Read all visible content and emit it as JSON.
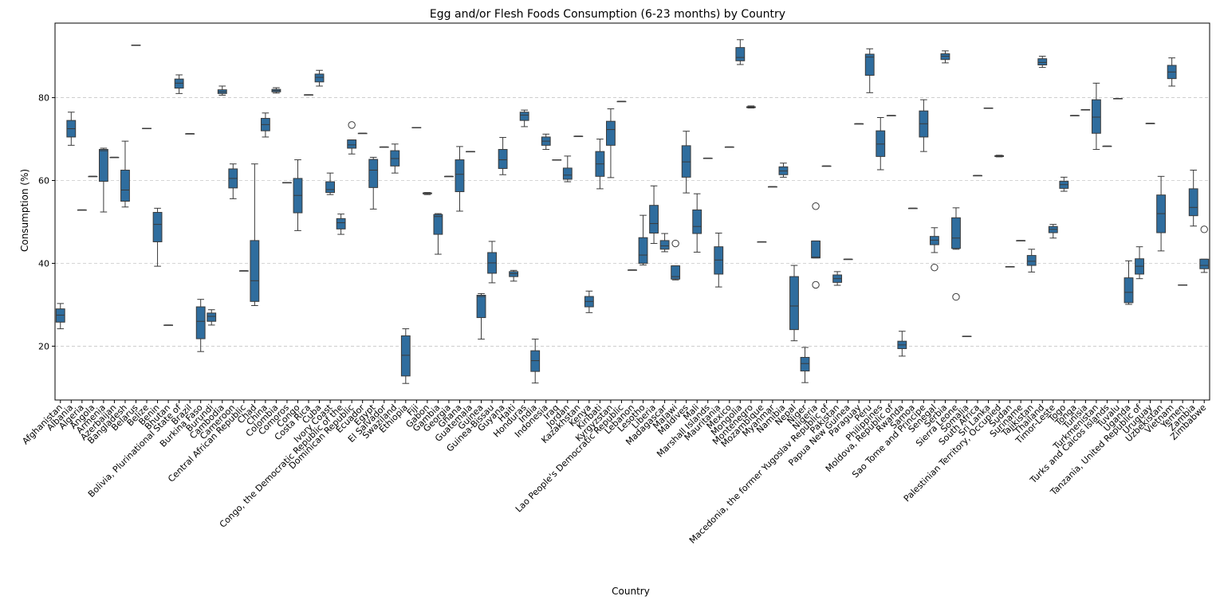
{
  "chart_data": {
    "type": "box",
    "title": "Egg and/or Flesh Foods Consumption (6-23 months) by Country",
    "xlabel": "Country",
    "ylabel": "Consumption (%)",
    "ylim": [
      7,
      98
    ],
    "yticks": [
      20,
      40,
      60,
      80
    ],
    "grid": "y-dashed",
    "box_color": "#2f6d9e",
    "categories": [
      "Afghanistan",
      "Albania",
      "Algeria",
      "Angola",
      "Armenia",
      "Azerbaijan",
      "Bangladesh",
      "Belarus",
      "Belize",
      "Benin",
      "Bhutan",
      "Bolivia, Plurinational State of",
      "Brazil",
      "Burkina Faso",
      "Burundi",
      "Cambodia",
      "Cameroon",
      "Central African Republic",
      "Chad",
      "China",
      "Colombia",
      "Comoros",
      "Congo",
      "Costa Rica",
      "Cuba",
      "Ivory Coast",
      "Congo, the Democratic Republic of the",
      "Dominican Republic",
      "Ecuador",
      "Egypt",
      "El Salvador",
      "Swaziland",
      "Ethiopia",
      "Fiji",
      "Gabon",
      "Gambia",
      "Georgia",
      "Ghana",
      "Guatemala",
      "Guinea",
      "Guinea-Bissau",
      "Guyana",
      "Haiti",
      "Honduras",
      "India",
      "Indonesia",
      "Iraq",
      "Jordan",
      "Kazakhstan",
      "Kenya",
      "Kiribati",
      "Kyrgyzstan",
      "Lao People's Democratic Republic",
      "Lebanon",
      "Lesotho",
      "Liberia",
      "Madagascar",
      "Malawi",
      "Maldives",
      "Mali",
      "Marshall Islands",
      "Mauritania",
      "Mexico",
      "Mongolia",
      "Montenegro",
      "Mozambique",
      "Myanmar",
      "Namibia",
      "Nepal",
      "Niger",
      "Nigeria",
      "Macedonia, the former Yugoslav Republic of",
      "Pakistan",
      "Papua New Guinea",
      "Paraguay",
      "Peru",
      "Philippines",
      "Moldova, Republic of",
      "Rwanda",
      "Samoa",
      "Sao Tome and Principe",
      "Senegal",
      "Serbia",
      "Sierra Leone",
      "Somalia",
      "South Africa",
      "Sri Lanka",
      "Palestinian Territory, Occupied",
      "Sudan",
      "Suriname",
      "Tajikistan",
      "Thailand",
      "Timor-Leste",
      "Togo",
      "Tonga",
      "Tunisia",
      "Turkmenistan",
      "Turks and Caicos Islands",
      "Tuvalu",
      "Uganda",
      "Tanzania, United Republic of",
      "Uruguay",
      "Uzbekistan",
      "Vietnam",
      "Yemen",
      "Zambia",
      "Zimbabwe"
    ],
    "boxes": [
      {
        "min": 24.2,
        "q1": 25.8,
        "median": 27.5,
        "q3": 29.0,
        "max": 30.3,
        "outliers": []
      },
      {
        "min": 68.5,
        "q1": 70.5,
        "median": 72.5,
        "q3": 74.5,
        "max": 76.5,
        "outliers": []
      },
      {
        "min": 52.9,
        "q1": 52.9,
        "median": 52.9,
        "q3": 52.9,
        "max": 52.9,
        "outliers": []
      },
      {
        "min": 61.0,
        "q1": 61.0,
        "median": 61.0,
        "q3": 61.0,
        "max": 61.0,
        "outliers": []
      },
      {
        "min": 52.4,
        "q1": 59.8,
        "median": 67.2,
        "q3": 67.5,
        "max": 67.8,
        "outliers": []
      },
      {
        "min": 65.6,
        "q1": 65.6,
        "median": 65.6,
        "q3": 65.6,
        "max": 65.6,
        "outliers": []
      },
      {
        "min": 53.6,
        "q1": 55.0,
        "median": 57.7,
        "q3": 62.5,
        "max": 69.5,
        "outliers": []
      },
      {
        "min": 92.7,
        "q1": 92.7,
        "median": 92.7,
        "q3": 92.7,
        "max": 92.7,
        "outliers": []
      },
      {
        "min": 72.6,
        "q1": 72.6,
        "median": 72.6,
        "q3": 72.6,
        "max": 72.6,
        "outliers": []
      },
      {
        "min": 39.3,
        "q1": 45.2,
        "median": 49.4,
        "q3": 52.3,
        "max": 53.3,
        "outliers": []
      },
      {
        "min": 25.1,
        "q1": 25.1,
        "median": 25.1,
        "q3": 25.1,
        "max": 25.1,
        "outliers": []
      },
      {
        "min": 81.0,
        "q1": 82.3,
        "median": 83.5,
        "q3": 84.5,
        "max": 85.5,
        "outliers": []
      },
      {
        "min": 71.3,
        "q1": 71.3,
        "median": 71.3,
        "q3": 71.3,
        "max": 71.3,
        "outliers": []
      },
      {
        "min": 18.7,
        "q1": 21.8,
        "median": 26.0,
        "q3": 29.5,
        "max": 31.3,
        "outliers": []
      },
      {
        "min": 25.1,
        "q1": 26.0,
        "median": 27.2,
        "q3": 28.0,
        "max": 28.8,
        "outliers": []
      },
      {
        "min": 80.6,
        "q1": 81.0,
        "median": 81.4,
        "q3": 81.9,
        "max": 82.8,
        "outliers": []
      },
      {
        "min": 55.6,
        "q1": 58.2,
        "median": 60.5,
        "q3": 62.8,
        "max": 64.0,
        "outliers": []
      },
      {
        "min": 38.2,
        "q1": 38.2,
        "median": 38.2,
        "q3": 38.2,
        "max": 38.2,
        "outliers": []
      },
      {
        "min": 29.8,
        "q1": 30.8,
        "median": 35.8,
        "q3": 45.5,
        "max": 64.0,
        "outliers": []
      },
      {
        "min": 70.5,
        "q1": 72.0,
        "median": 73.5,
        "q3": 75.0,
        "max": 76.3,
        "outliers": []
      },
      {
        "min": 81.1,
        "q1": 81.4,
        "median": 81.7,
        "q3": 82.0,
        "max": 82.4,
        "outliers": []
      },
      {
        "min": 59.5,
        "q1": 59.5,
        "median": 59.5,
        "q3": 59.5,
        "max": 59.5,
        "outliers": []
      },
      {
        "min": 47.9,
        "q1": 52.2,
        "median": 56.4,
        "q3": 60.5,
        "max": 65.0,
        "outliers": []
      },
      {
        "min": 80.7,
        "q1": 80.7,
        "median": 80.7,
        "q3": 80.7,
        "max": 80.7,
        "outliers": []
      },
      {
        "min": 82.8,
        "q1": 83.8,
        "median": 84.9,
        "q3": 85.7,
        "max": 86.6,
        "outliers": []
      },
      {
        "min": 56.6,
        "q1": 57.1,
        "median": 57.8,
        "q3": 59.7,
        "max": 61.8,
        "outliers": []
      },
      {
        "min": 47.0,
        "q1": 48.3,
        "median": 49.8,
        "q3": 50.8,
        "max": 51.9,
        "outliers": []
      },
      {
        "min": 66.4,
        "q1": 67.8,
        "median": 68.6,
        "q3": 69.8,
        "max": 69.8,
        "outliers": [
          73.4
        ]
      },
      {
        "min": 71.4,
        "q1": 71.4,
        "median": 71.4,
        "q3": 71.4,
        "max": 71.4,
        "outliers": []
      },
      {
        "min": 53.1,
        "q1": 58.3,
        "median": 62.5,
        "q3": 65.1,
        "max": 65.6,
        "outliers": []
      },
      {
        "min": 68.1,
        "q1": 68.1,
        "median": 68.1,
        "q3": 68.1,
        "max": 68.1,
        "outliers": []
      },
      {
        "min": 61.8,
        "q1": 63.5,
        "median": 65.3,
        "q3": 67.2,
        "max": 68.8,
        "outliers": []
      },
      {
        "min": 11.0,
        "q1": 12.8,
        "median": 17.8,
        "q3": 22.5,
        "max": 24.2,
        "outliers": []
      },
      {
        "min": 72.8,
        "q1": 72.8,
        "median": 72.8,
        "q3": 72.8,
        "max": 72.8,
        "outliers": []
      },
      {
        "min": 56.6,
        "q1": 56.8,
        "median": 56.9,
        "q3": 57.0,
        "max": 57.1,
        "outliers": []
      },
      {
        "min": 42.2,
        "q1": 47.0,
        "median": 51.3,
        "q3": 51.8,
        "max": 52.0,
        "outliers": []
      },
      {
        "min": 61.0,
        "q1": 61.0,
        "median": 61.0,
        "q3": 61.0,
        "max": 61.0,
        "outliers": []
      },
      {
        "min": 52.6,
        "q1": 57.3,
        "median": 61.5,
        "q3": 65.0,
        "max": 68.2,
        "outliers": []
      },
      {
        "min": 67.0,
        "q1": 67.0,
        "median": 67.0,
        "q3": 67.0,
        "max": 67.0,
        "outliers": []
      },
      {
        "min": 21.7,
        "q1": 26.9,
        "median": 32.0,
        "q3": 32.3,
        "max": 32.7,
        "outliers": []
      },
      {
        "min": 35.3,
        "q1": 37.6,
        "median": 40.1,
        "q3": 42.6,
        "max": 45.3,
        "outliers": []
      },
      {
        "min": 61.4,
        "q1": 62.9,
        "median": 65.0,
        "q3": 67.5,
        "max": 70.4,
        "outliers": []
      },
      {
        "min": 35.7,
        "q1": 36.8,
        "median": 37.5,
        "q3": 38.0,
        "max": 38.3,
        "outliers": []
      },
      {
        "min": 73.0,
        "q1": 74.5,
        "median": 75.8,
        "q3": 76.5,
        "max": 77.0,
        "outliers": []
      },
      {
        "min": 11.1,
        "q1": 13.9,
        "median": 16.5,
        "q3": 18.9,
        "max": 21.7,
        "outliers": []
      },
      {
        "min": 67.5,
        "q1": 68.5,
        "median": 69.5,
        "q3": 70.5,
        "max": 71.2,
        "outliers": []
      },
      {
        "min": 65.0,
        "q1": 65.0,
        "median": 65.0,
        "q3": 65.0,
        "max": 65.0,
        "outliers": []
      },
      {
        "min": 59.7,
        "q1": 60.3,
        "median": 61.3,
        "q3": 63.0,
        "max": 65.9,
        "outliers": []
      },
      {
        "min": 70.7,
        "q1": 70.7,
        "median": 70.7,
        "q3": 70.7,
        "max": 70.7,
        "outliers": []
      },
      {
        "min": 28.1,
        "q1": 29.5,
        "median": 30.8,
        "q3": 32.0,
        "max": 33.3,
        "outliers": []
      },
      {
        "min": 58.0,
        "q1": 61.0,
        "median": 64.0,
        "q3": 67.0,
        "max": 70.0,
        "outliers": []
      },
      {
        "min": 60.7,
        "q1": 68.5,
        "median": 72.3,
        "q3": 74.3,
        "max": 77.3,
        "outliers": []
      },
      {
        "min": 79.1,
        "q1": 79.1,
        "median": 79.1,
        "q3": 79.1,
        "max": 79.1,
        "outliers": []
      },
      {
        "min": 38.4,
        "q1": 38.4,
        "median": 38.4,
        "q3": 38.4,
        "max": 38.4,
        "outliers": []
      },
      {
        "min": 39.6,
        "q1": 40.0,
        "median": 42.0,
        "q3": 46.2,
        "max": 51.6,
        "outliers": []
      },
      {
        "min": 44.8,
        "q1": 47.3,
        "median": 49.6,
        "q3": 54.0,
        "max": 58.7,
        "outliers": []
      },
      {
        "min": 42.8,
        "q1": 43.4,
        "median": 44.2,
        "q3": 45.5,
        "max": 47.2,
        "outliers": []
      },
      {
        "min": 36.0,
        "q1": 36.2,
        "median": 36.8,
        "q3": 39.4,
        "max": 39.4,
        "outliers": [
          44.8
        ]
      },
      {
        "min": 57.0,
        "q1": 60.8,
        "median": 64.5,
        "q3": 68.4,
        "max": 71.9,
        "outliers": []
      },
      {
        "min": 42.7,
        "q1": 47.2,
        "median": 48.9,
        "q3": 52.9,
        "max": 56.8,
        "outliers": []
      },
      {
        "min": 65.4,
        "q1": 65.4,
        "median": 65.4,
        "q3": 65.4,
        "max": 65.4,
        "outliers": []
      },
      {
        "min": 34.3,
        "q1": 37.4,
        "median": 40.8,
        "q3": 44.0,
        "max": 47.3,
        "outliers": []
      },
      {
        "min": 68.1,
        "q1": 68.1,
        "median": 68.1,
        "q3": 68.1,
        "max": 68.1,
        "outliers": []
      },
      {
        "min": 88.0,
        "q1": 88.9,
        "median": 89.7,
        "q3": 92.1,
        "max": 94.0,
        "outliers": []
      },
      {
        "min": 77.5,
        "q1": 77.6,
        "median": 77.7,
        "q3": 77.8,
        "max": 78.0,
        "outliers": []
      },
      {
        "min": 45.2,
        "q1": 45.2,
        "median": 45.2,
        "q3": 45.2,
        "max": 45.2,
        "outliers": []
      },
      {
        "min": 58.5,
        "q1": 58.5,
        "median": 58.5,
        "q3": 58.5,
        "max": 58.5,
        "outliers": []
      },
      {
        "min": 60.8,
        "q1": 61.4,
        "median": 62.3,
        "q3": 63.3,
        "max": 64.2,
        "outliers": []
      },
      {
        "min": 21.3,
        "q1": 24.0,
        "median": 29.7,
        "q3": 36.8,
        "max": 39.5,
        "outliers": []
      },
      {
        "min": 11.2,
        "q1": 14.0,
        "median": 15.8,
        "q3": 17.3,
        "max": 19.7,
        "outliers": []
      },
      {
        "min": 41.3,
        "q1": 41.3,
        "median": 41.5,
        "q3": 45.4,
        "max": 45.4,
        "outliers": [
          34.8,
          53.8
        ]
      },
      {
        "min": 63.5,
        "q1": 63.5,
        "median": 63.5,
        "q3": 63.5,
        "max": 63.5,
        "outliers": []
      },
      {
        "min": 34.7,
        "q1": 35.4,
        "median": 36.3,
        "q3": 37.2,
        "max": 38.0,
        "outliers": []
      },
      {
        "min": 41.0,
        "q1": 41.0,
        "median": 41.0,
        "q3": 41.0,
        "max": 41.0,
        "outliers": []
      },
      {
        "min": 73.7,
        "q1": 73.7,
        "median": 73.7,
        "q3": 73.7,
        "max": 73.7,
        "outliers": []
      },
      {
        "min": 81.2,
        "q1": 85.4,
        "median": 89.8,
        "q3": 90.5,
        "max": 91.8,
        "outliers": []
      },
      {
        "min": 62.6,
        "q1": 65.8,
        "median": 68.8,
        "q3": 72.0,
        "max": 75.2,
        "outliers": []
      },
      {
        "min": 75.7,
        "q1": 75.7,
        "median": 75.7,
        "q3": 75.7,
        "max": 75.7,
        "outliers": []
      },
      {
        "min": 17.6,
        "q1": 19.4,
        "median": 20.3,
        "q3": 21.2,
        "max": 23.6,
        "outliers": []
      },
      {
        "min": 53.3,
        "q1": 53.3,
        "median": 53.3,
        "q3": 53.3,
        "max": 53.3,
        "outliers": []
      },
      {
        "min": 67.0,
        "q1": 70.5,
        "median": 73.7,
        "q3": 76.8,
        "max": 79.5,
        "outliers": []
      },
      {
        "min": 42.6,
        "q1": 44.5,
        "median": 45.6,
        "q3": 46.5,
        "max": 48.6,
        "outliers": [
          39.0
        ]
      },
      {
        "min": 88.4,
        "q1": 89.2,
        "median": 90.0,
        "q3": 90.6,
        "max": 91.3,
        "outliers": []
      },
      {
        "min": 43.4,
        "q1": 43.6,
        "median": 46.1,
        "q3": 51.0,
        "max": 53.4,
        "outliers": [
          31.9
        ]
      },
      {
        "min": 22.4,
        "q1": 22.4,
        "median": 22.4,
        "q3": 22.4,
        "max": 22.4,
        "outliers": []
      },
      {
        "min": 61.2,
        "q1": 61.2,
        "median": 61.2,
        "q3": 61.2,
        "max": 61.2,
        "outliers": []
      },
      {
        "min": 77.5,
        "q1": 77.5,
        "median": 77.5,
        "q3": 77.5,
        "max": 77.5,
        "outliers": []
      },
      {
        "min": 65.7,
        "q1": 65.8,
        "median": 65.9,
        "q3": 66.0,
        "max": 66.1,
        "outliers": []
      },
      {
        "min": 39.2,
        "q1": 39.2,
        "median": 39.2,
        "q3": 39.2,
        "max": 39.2,
        "outliers": []
      },
      {
        "min": 45.5,
        "q1": 45.5,
        "median": 45.5,
        "q3": 45.5,
        "max": 45.5,
        "outliers": []
      },
      {
        "min": 37.9,
        "q1": 39.5,
        "median": 40.5,
        "q3": 41.9,
        "max": 43.4,
        "outliers": []
      },
      {
        "min": 87.3,
        "q1": 87.9,
        "median": 88.5,
        "q3": 89.4,
        "max": 90.0,
        "outliers": []
      },
      {
        "min": 46.1,
        "q1": 47.4,
        "median": 48.2,
        "q3": 48.9,
        "max": 49.4,
        "outliers": []
      },
      {
        "min": 57.4,
        "q1": 58.1,
        "median": 59.0,
        "q3": 59.8,
        "max": 60.8,
        "outliers": []
      },
      {
        "min": 75.7,
        "q1": 75.7,
        "median": 75.7,
        "q3": 75.7,
        "max": 75.7,
        "outliers": []
      },
      {
        "min": 77.1,
        "q1": 77.1,
        "median": 77.1,
        "q3": 77.1,
        "max": 77.1,
        "outliers": []
      },
      {
        "min": 67.5,
        "q1": 71.4,
        "median": 75.3,
        "q3": 79.5,
        "max": 83.5,
        "outliers": []
      },
      {
        "min": 68.3,
        "q1": 68.3,
        "median": 68.3,
        "q3": 68.3,
        "max": 68.3,
        "outliers": []
      },
      {
        "min": 79.8,
        "q1": 79.8,
        "median": 79.8,
        "q3": 79.8,
        "max": 79.8,
        "outliers": []
      },
      {
        "min": 30.1,
        "q1": 30.5,
        "median": 33.0,
        "q3": 36.5,
        "max": 40.6,
        "outliers": []
      },
      {
        "min": 36.3,
        "q1": 37.4,
        "median": 39.3,
        "q3": 41.1,
        "max": 44.0,
        "outliers": []
      },
      {
        "min": 73.8,
        "q1": 73.8,
        "median": 73.8,
        "q3": 73.8,
        "max": 73.8,
        "outliers": []
      },
      {
        "min": 43.0,
        "q1": 47.4,
        "median": 52.0,
        "q3": 56.5,
        "max": 61.0,
        "outliers": []
      },
      {
        "min": 82.8,
        "q1": 84.6,
        "median": 86.2,
        "q3": 87.8,
        "max": 89.6,
        "outliers": []
      },
      {
        "min": 34.8,
        "q1": 34.8,
        "median": 34.8,
        "q3": 34.8,
        "max": 34.8,
        "outliers": []
      },
      {
        "min": 49.0,
        "q1": 51.5,
        "median": 53.5,
        "q3": 58.0,
        "max": 62.5,
        "outliers": []
      },
      {
        "min": 37.8,
        "q1": 38.7,
        "median": 39.5,
        "q3": 41.0,
        "max": 41.0,
        "outliers": [
          48.2
        ]
      }
    ]
  }
}
